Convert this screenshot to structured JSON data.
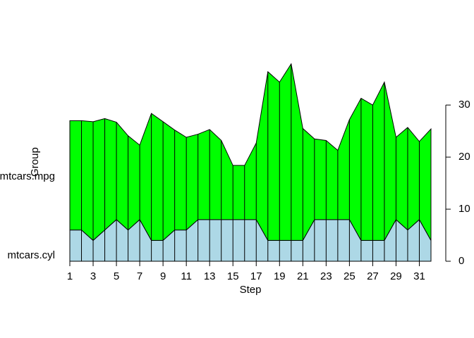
{
  "chart_data": {
    "type": "stacked-area",
    "x": [
      1,
      2,
      3,
      4,
      5,
      6,
      7,
      8,
      9,
      10,
      11,
      12,
      13,
      14,
      15,
      16,
      17,
      18,
      19,
      20,
      21,
      22,
      23,
      24,
      25,
      26,
      27,
      28,
      29,
      30,
      31,
      32
    ],
    "series": [
      {
        "name": "mtcars.cyl",
        "color": "#add8e6",
        "values": [
          6,
          6,
          4,
          6,
          8,
          6,
          8,
          4,
          4,
          6,
          6,
          8,
          8,
          8,
          8,
          8,
          8,
          4,
          4,
          4,
          4,
          8,
          8,
          8,
          8,
          4,
          4,
          4,
          8,
          6,
          8,
          4
        ]
      },
      {
        "name": "mtcars.mpg",
        "color": "#00ff00",
        "values": [
          21.0,
          21.0,
          22.8,
          21.4,
          18.7,
          18.1,
          14.3,
          24.4,
          22.8,
          19.2,
          17.8,
          16.4,
          17.3,
          15.2,
          10.4,
          10.4,
          14.7,
          32.4,
          30.4,
          33.9,
          21.5,
          15.5,
          15.2,
          13.3,
          19.2,
          27.3,
          26.0,
          30.4,
          15.8,
          19.7,
          15.0,
          21.4
        ]
      }
    ],
    "xlim": [
      1,
      32
    ],
    "xticks": [
      1,
      3,
      5,
      7,
      9,
      11,
      13,
      15,
      17,
      19,
      21,
      23,
      25,
      27,
      29,
      31
    ],
    "ylim": [
      0,
      38
    ],
    "yticks": [
      0,
      10,
      20,
      30
    ],
    "x_label": "Step",
    "y_label": "Group"
  }
}
